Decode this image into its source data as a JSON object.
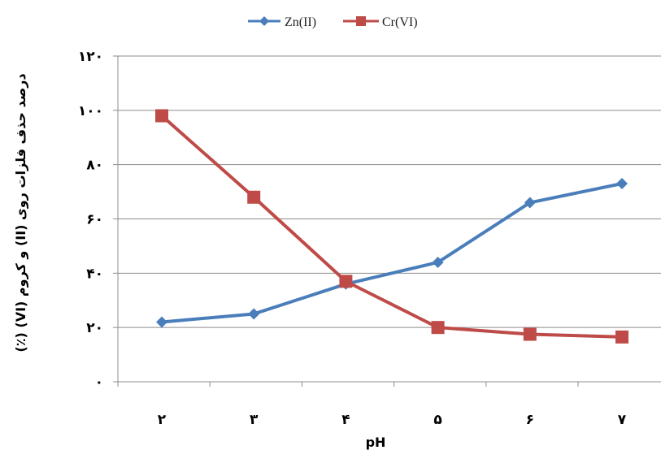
{
  "chart_data": {
    "type": "line",
    "xlabel": "pH",
    "ylabel": "درصد حذف فلزات روی (II) و کروم (VI) (٪)",
    "categories": [
      "۲",
      "۳",
      "۴",
      "۵",
      "۶",
      "۷"
    ],
    "ylim": [
      0,
      120
    ],
    "yticks": [
      0,
      20,
      40,
      60,
      80,
      100,
      120
    ],
    "ytick_labels": [
      "۰",
      "۲۰",
      "۴۰",
      "۶۰",
      "۸۰",
      "۱۰۰",
      "۱۲۰"
    ],
    "grid": true,
    "legend_position": "top",
    "series": [
      {
        "name": "Zn(II)",
        "color": "#4a7ebb",
        "marker": "diamond",
        "values": [
          22,
          25,
          36,
          44,
          66,
          73
        ]
      },
      {
        "name": "Cr(VI)",
        "color": "#be4b48",
        "marker": "square",
        "values": [
          98,
          68,
          37,
          20,
          17.5,
          16.5
        ]
      }
    ]
  }
}
